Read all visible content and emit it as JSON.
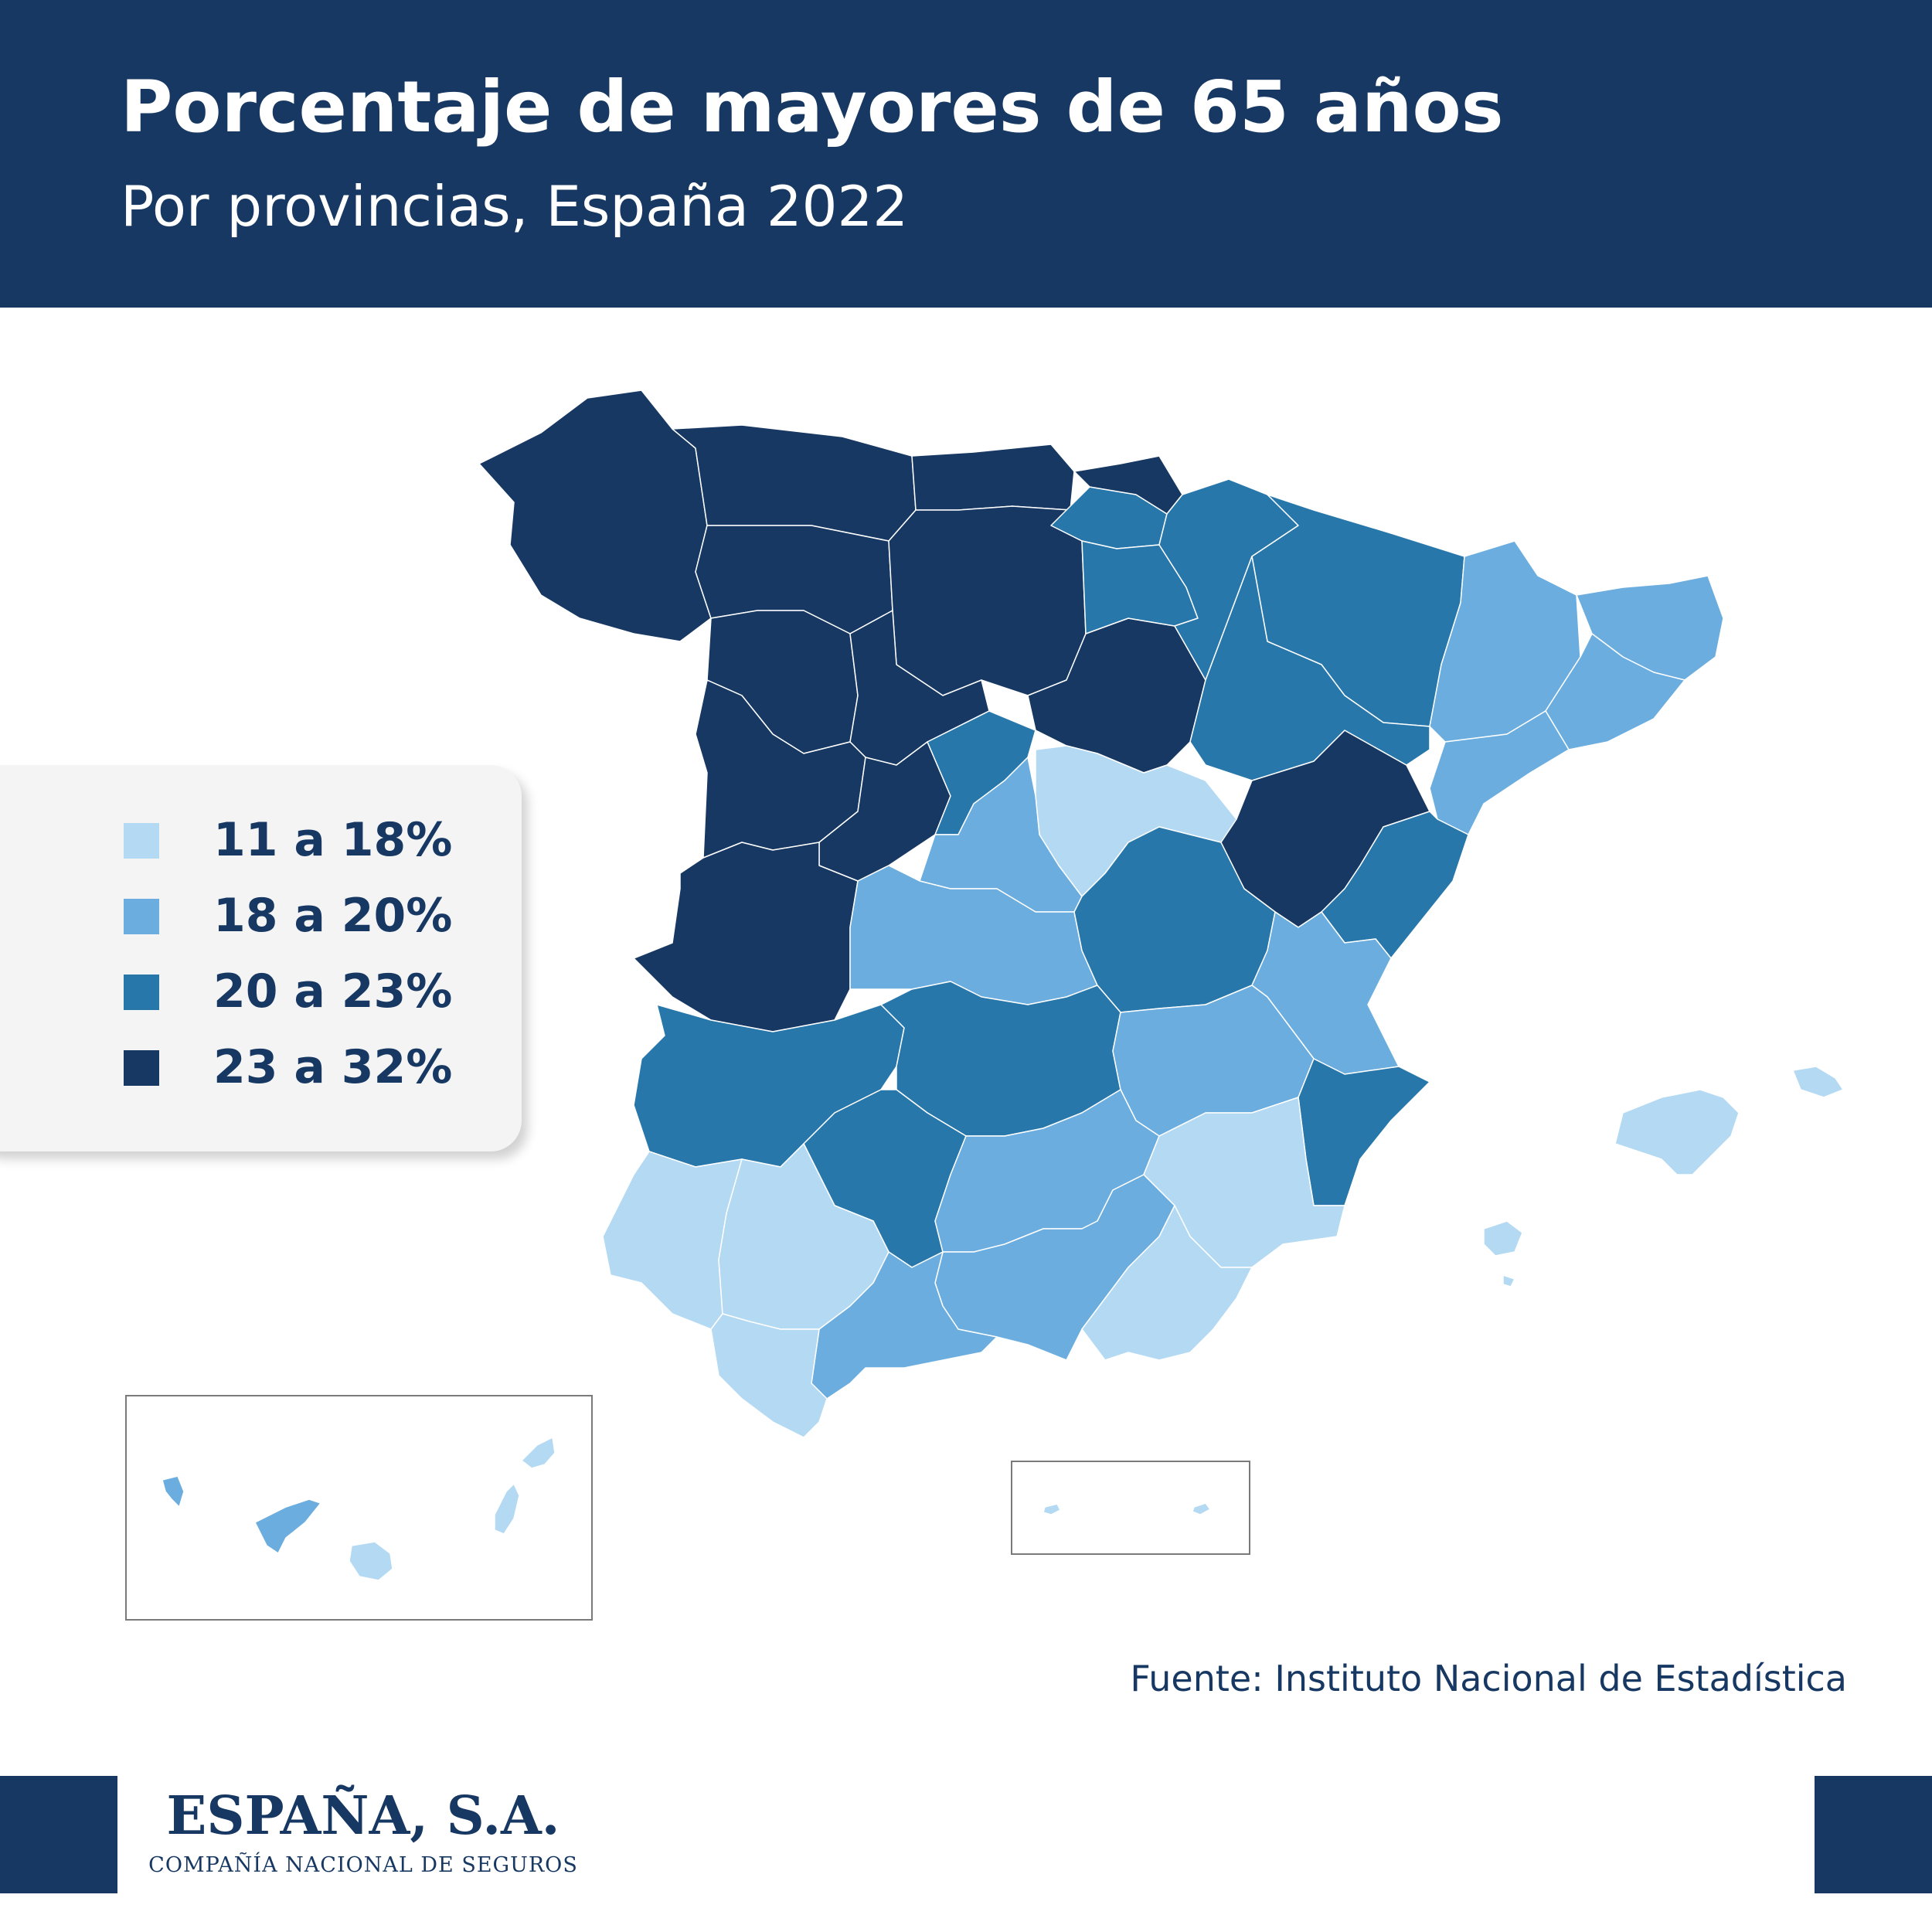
{
  "header": {
    "title": "Porcentaje de mayores de 65 años",
    "subtitle": "Por provincias, España 2022"
  },
  "legend": {
    "items": [
      {
        "label": "11 a 18%",
        "color": "#b3d9f3"
      },
      {
        "label": "18 a 20%",
        "color": "#6aadde"
      },
      {
        "label": "20 a 23%",
        "color": "#2877aa"
      },
      {
        "label": "23 a 32%",
        "color": "#173862"
      }
    ]
  },
  "map": {
    "regions": [
      {
        "name": "galicia-west",
        "class": "23 a 32%"
      },
      {
        "name": "asturias",
        "class": "23 a 32%"
      },
      {
        "name": "leon",
        "class": "23 a 32%"
      },
      {
        "name": "cantabria",
        "class": "23 a 32%"
      },
      {
        "name": "burgos",
        "class": "23 a 32%"
      },
      {
        "name": "zamora",
        "class": "23 a 32%"
      },
      {
        "name": "palencia-valladolid",
        "class": "23 a 32%"
      },
      {
        "name": "salamanca",
        "class": "23 a 32%"
      },
      {
        "name": "avila",
        "class": "23 a 32%"
      },
      {
        "name": "caceres",
        "class": "23 a 32%"
      },
      {
        "name": "soria",
        "class": "23 a 32%"
      },
      {
        "name": "teruel",
        "class": "23 a 32%"
      },
      {
        "name": "gipuzkoa",
        "class": "23 a 32%"
      },
      {
        "name": "vizcaya",
        "class": "20 a 23%"
      },
      {
        "name": "la-rioja",
        "class": "20 a 23%"
      },
      {
        "name": "navarra",
        "class": "20 a 23%"
      },
      {
        "name": "huesca",
        "class": "20 a 23%"
      },
      {
        "name": "zaragoza",
        "class": "20 a 23%"
      },
      {
        "name": "segovia",
        "class": "20 a 23%"
      },
      {
        "name": "cuenca",
        "class": "20 a 23%"
      },
      {
        "name": "castellon",
        "class": "20 a 23%"
      },
      {
        "name": "badajoz",
        "class": "20 a 23%"
      },
      {
        "name": "ciudad-real",
        "class": "20 a 23%"
      },
      {
        "name": "cordoba",
        "class": "20 a 23%"
      },
      {
        "name": "alicante",
        "class": "20 a 23%"
      },
      {
        "name": "lleida",
        "class": "18 a 20%"
      },
      {
        "name": "girona",
        "class": "18 a 20%"
      },
      {
        "name": "barcelona",
        "class": "18 a 20%"
      },
      {
        "name": "tarragona",
        "class": "18 a 20%"
      },
      {
        "name": "madrid-west",
        "class": "18 a 20%"
      },
      {
        "name": "toledo",
        "class": "18 a 20%"
      },
      {
        "name": "valencia",
        "class": "18 a 20%"
      },
      {
        "name": "albacete",
        "class": "18 a 20%"
      },
      {
        "name": "jaen",
        "class": "18 a 20%"
      },
      {
        "name": "granada",
        "class": "18 a 20%"
      },
      {
        "name": "malaga",
        "class": "18 a 20%"
      },
      {
        "name": "tenerife",
        "class": "18 a 20%"
      },
      {
        "name": "guadalajara",
        "class": "11 a 18%"
      },
      {
        "name": "murcia",
        "class": "11 a 18%"
      },
      {
        "name": "almeria",
        "class": "11 a 18%"
      },
      {
        "name": "huelva",
        "class": "11 a 18%"
      },
      {
        "name": "sevilla",
        "class": "11 a 18%"
      },
      {
        "name": "cadiz",
        "class": "11 a 18%"
      },
      {
        "name": "baleares",
        "class": "11 a 18%"
      },
      {
        "name": "las-palmas",
        "class": "11 a 18%"
      },
      {
        "name": "ceuta-melilla",
        "class": "11 a 18%"
      }
    ]
  },
  "source": "Fuente: Instituto Nacional de Estadística",
  "brand": {
    "name": "ESPAÑA, S.A.",
    "tagline": "COMPAÑÍA NACIONAL DE SEGUROS"
  },
  "colors": {
    "primary": "#173862",
    "c1": "#b3d9f3",
    "c2": "#6aadde",
    "c3": "#2877aa",
    "c4": "#173862"
  }
}
